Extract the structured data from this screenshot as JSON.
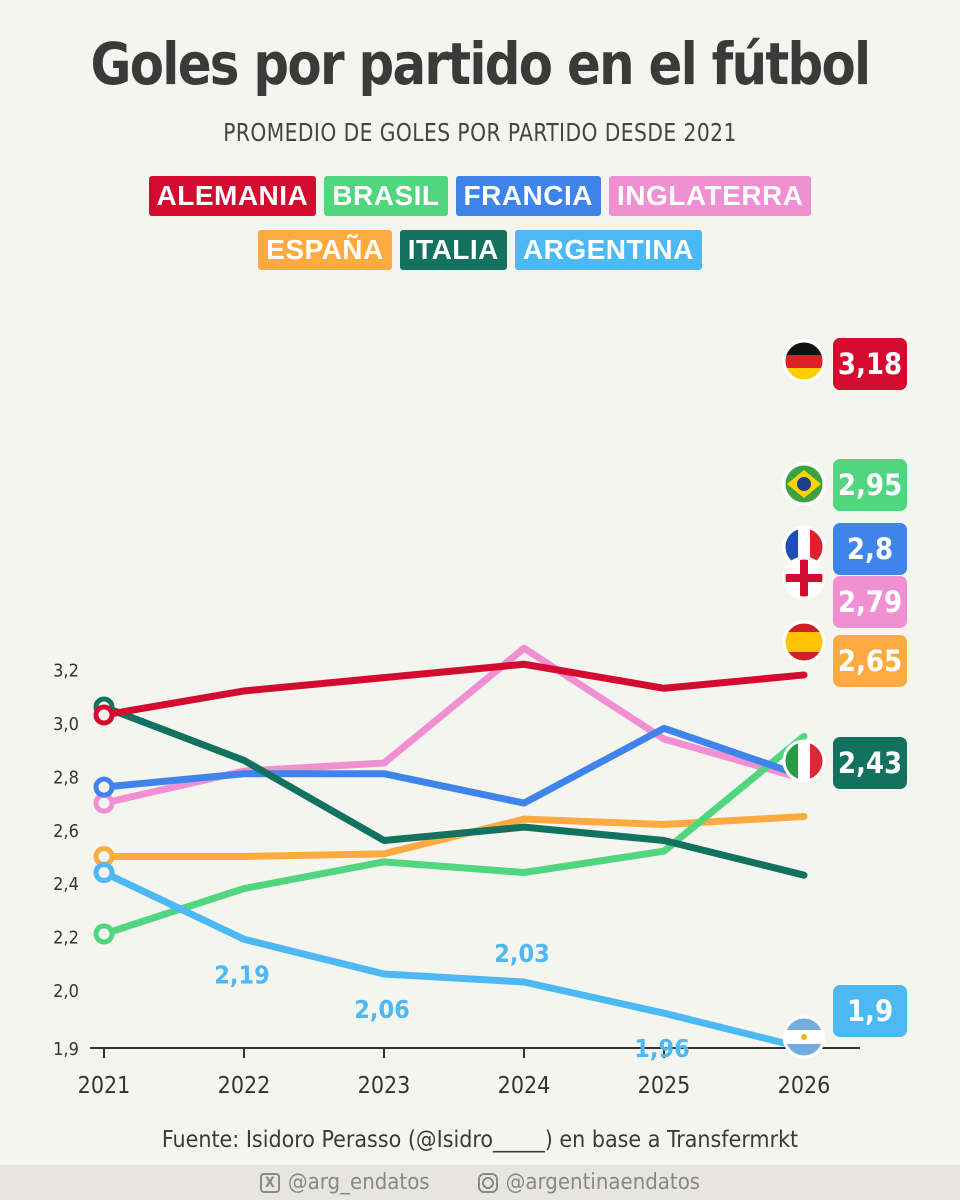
{
  "title": "Goles por partido en el fútbol",
  "subtitle": "PROMEDIO DE GOLES POR PARTIDO DESDE 2021",
  "footer": {
    "source": "Fuente: Isidoro Perasso (@Isidro_____) en base a Transfermrkt",
    "x_handle": "@arg_endatos",
    "ig_handle": "@argentinaendatos",
    "x_icon": "x-logo-icon",
    "ig_icon": "instagram-icon"
  },
  "chart_data": {
    "type": "line",
    "x": [
      "2021",
      "2022",
      "2023",
      "2024",
      "2025",
      "2026"
    ],
    "ylim": [
      1.9,
      3.3
    ],
    "yticks": [
      "1,9",
      "2,0",
      "2,2",
      "2,4",
      "2,6",
      "2,8",
      "3,0",
      "3,2"
    ],
    "ytick_values": [
      1.9,
      2.0,
      2.2,
      2.4,
      2.6,
      2.8,
      3.0,
      3.2
    ],
    "grid": false,
    "legend_placement": "top-center",
    "series": [
      {
        "name": "ALEMANIA",
        "color": "#d40b2e",
        "values": [
          3.03,
          3.12,
          3.17,
          3.22,
          3.13,
          3.18
        ],
        "end_label": "3,18",
        "flag": "germany-flag-icon"
      },
      {
        "name": "BRASIL",
        "color": "#4fd67f",
        "values": [
          2.21,
          2.38,
          2.48,
          2.44,
          2.52,
          2.95
        ],
        "end_label": "2,95",
        "flag": "brazil-flag-icon"
      },
      {
        "name": "FRANCIA",
        "color": "#3f84ea",
        "values": [
          2.76,
          2.81,
          2.81,
          2.7,
          2.98,
          2.8
        ],
        "end_label": "2,8",
        "flag": "france-flag-icon"
      },
      {
        "name": "INGLATERRA",
        "color": "#f090d3",
        "values": [
          2.7,
          2.82,
          2.85,
          3.28,
          2.94,
          2.79
        ],
        "end_label": "2,79",
        "flag": "england-flag-icon"
      },
      {
        "name": "ESPAÑA",
        "color": "#fdab40",
        "values": [
          2.5,
          2.5,
          2.51,
          2.64,
          2.62,
          2.65
        ],
        "end_label": "2,65",
        "flag": "spain-flag-icon"
      },
      {
        "name": "ITALIA",
        "color": "#12715f",
        "values": [
          3.06,
          2.86,
          2.56,
          2.61,
          2.56,
          2.43
        ],
        "end_label": "2,43",
        "flag": "italy-flag-icon"
      },
      {
        "name": "ARGENTINA",
        "color": "#4cb8f4",
        "values": [
          2.44,
          2.19,
          2.06,
          2.03,
          1.96,
          1.9
        ],
        "end_label": "1,9",
        "flag": "argentina-flag-icon",
        "data_labels": [
          "",
          "2,19",
          "2,06",
          "2,03",
          "1,96",
          ""
        ]
      }
    ]
  }
}
